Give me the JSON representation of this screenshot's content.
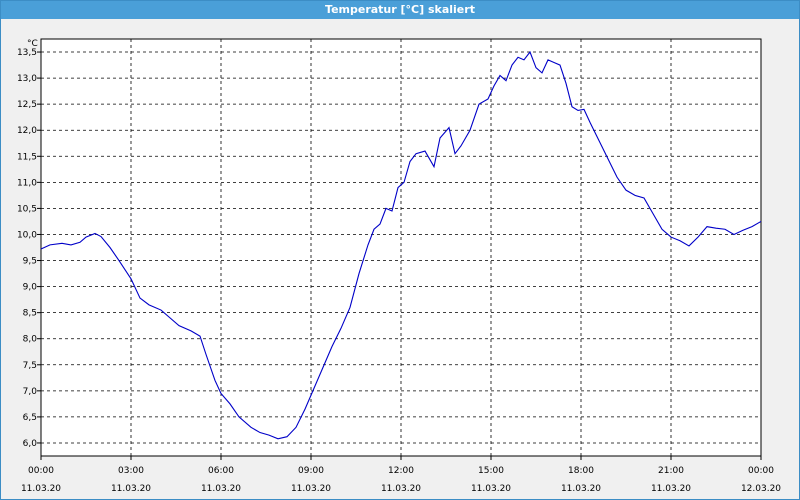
{
  "window": {
    "title": "Temperatur [°C] skaliert"
  },
  "colors": {
    "titlebar": "#4a9fd8",
    "line": "#0000c8",
    "grid": "#000000",
    "plot_bg": "#ffffff",
    "window_bg": "#f0f0f0"
  },
  "chart_data": {
    "type": "line",
    "title": "Temperatur [°C] skaliert",
    "ylabel": "°C",
    "xlabel": "",
    "grid": true,
    "ylim": [
      5.75,
      13.75
    ],
    "xlim": [
      0,
      24
    ],
    "yticks": [
      6.0,
      6.5,
      7.0,
      7.5,
      8.0,
      8.5,
      9.0,
      9.5,
      10.0,
      10.5,
      11.0,
      11.5,
      12.0,
      12.5,
      13.0,
      13.5
    ],
    "ytick_labels": [
      "6,0",
      "6,5",
      "7,0",
      "7,5",
      "8,0",
      "8,5",
      "9,0",
      "9,5",
      "10,0",
      "10,5",
      "11,0",
      "11,5",
      "12,0",
      "12,5",
      "13,0",
      "13,5"
    ],
    "xticks": [
      {
        "x": 0,
        "time": "00:00",
        "date": "11.03.20"
      },
      {
        "x": 3,
        "time": "03:00",
        "date": "11.03.20"
      },
      {
        "x": 6,
        "time": "06:00",
        "date": "11.03.20"
      },
      {
        "x": 9,
        "time": "09:00",
        "date": "11.03.20"
      },
      {
        "x": 12,
        "time": "12:00",
        "date": "11.03.20"
      },
      {
        "x": 15,
        "time": "15:00",
        "date": "11.03.20"
      },
      {
        "x": 18,
        "time": "18:00",
        "date": "11.03.20"
      },
      {
        "x": 21,
        "time": "21:00",
        "date": "11.03.20"
      },
      {
        "x": 24,
        "time": "00:00",
        "date": "12.03.20"
      }
    ],
    "series": [
      {
        "x": [
          0,
          0.3,
          0.7,
          1.0,
          1.3,
          1.5,
          1.8,
          2.0,
          2.3,
          2.6,
          3.0,
          3.3,
          3.6,
          4.0,
          4.3,
          4.6,
          5.0,
          5.3,
          5.5,
          5.8,
          6.0,
          6.3,
          6.6,
          7.0,
          7.3,
          7.6,
          7.9,
          8.2,
          8.5,
          8.8,
          9.1,
          9.4,
          9.7,
          10.0,
          10.3,
          10.6,
          10.9,
          11.1,
          11.3,
          11.5,
          11.7,
          11.9,
          12.1,
          12.3,
          12.5,
          12.8,
          13.1,
          13.3,
          13.6,
          13.8,
          14.0,
          14.3,
          14.6,
          14.9,
          15.1,
          15.3,
          15.5,
          15.7,
          15.9,
          16.1,
          16.3,
          16.5,
          16.7,
          16.9,
          17.1,
          17.3,
          17.5,
          17.7,
          17.9,
          18.1,
          18.3,
          18.6,
          18.9,
          19.2,
          19.5,
          19.8,
          20.1,
          20.4,
          20.7,
          21.0,
          21.3,
          21.6,
          21.9,
          22.2,
          22.5,
          22.8,
          23.1,
          23.4,
          23.7,
          24.0
        ],
        "values": [
          9.72,
          9.8,
          9.83,
          9.8,
          9.85,
          9.95,
          10.02,
          9.96,
          9.75,
          9.5,
          9.15,
          8.78,
          8.65,
          8.55,
          8.4,
          8.25,
          8.15,
          8.05,
          7.7,
          7.2,
          6.95,
          6.75,
          6.5,
          6.3,
          6.2,
          6.15,
          6.08,
          6.12,
          6.3,
          6.65,
          7.05,
          7.45,
          7.85,
          8.2,
          8.6,
          9.25,
          9.8,
          10.1,
          10.2,
          10.5,
          10.45,
          10.9,
          11.0,
          11.4,
          11.55,
          11.6,
          11.3,
          11.85,
          12.05,
          11.55,
          11.7,
          12.0,
          12.5,
          12.6,
          12.85,
          13.05,
          12.95,
          13.25,
          13.4,
          13.35,
          13.5,
          13.2,
          13.1,
          13.35,
          13.3,
          13.25,
          12.9,
          12.45,
          12.38,
          12.4,
          12.15,
          11.8,
          11.45,
          11.1,
          10.85,
          10.75,
          10.7,
          10.4,
          10.1,
          9.95,
          9.88,
          9.78,
          9.95,
          10.15,
          10.12,
          10.1,
          10.0,
          10.08,
          10.15,
          10.25
        ]
      }
    ]
  }
}
